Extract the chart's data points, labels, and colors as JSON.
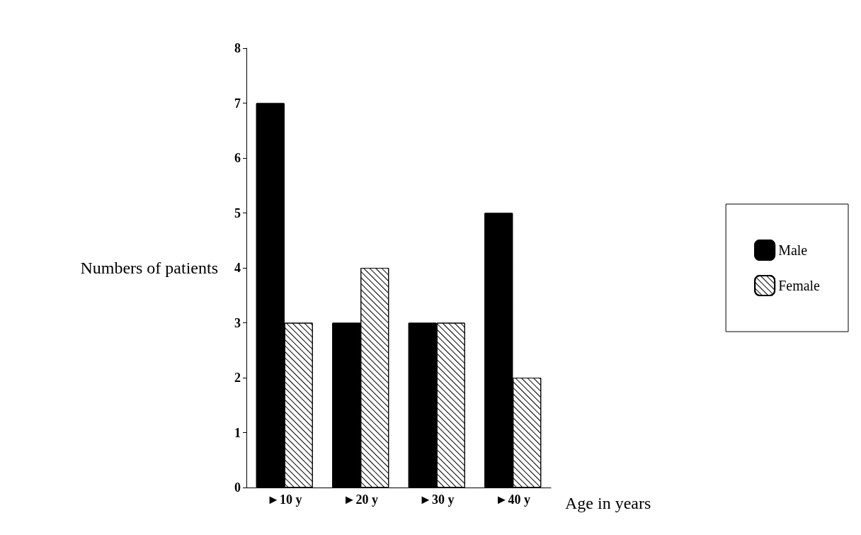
{
  "chart_data": {
    "type": "bar",
    "xlabel": "Age in years",
    "ylabel": "Numbers of patients",
    "categories": [
      "►10 y",
      "►20 y",
      "►30 y",
      "►40 y"
    ],
    "series": [
      {
        "name": "Male",
        "color": "#000000",
        "values": [
          7,
          3,
          3,
          5
        ]
      },
      {
        "name": "Female",
        "color": "#ffffff",
        "values": [
          3,
          4,
          3,
          2
        ]
      }
    ],
    "ylim": [
      0,
      8
    ],
    "yticks": [
      0,
      1,
      2,
      3,
      4,
      5,
      6,
      7,
      8
    ],
    "grid": false,
    "legend": "right"
  }
}
